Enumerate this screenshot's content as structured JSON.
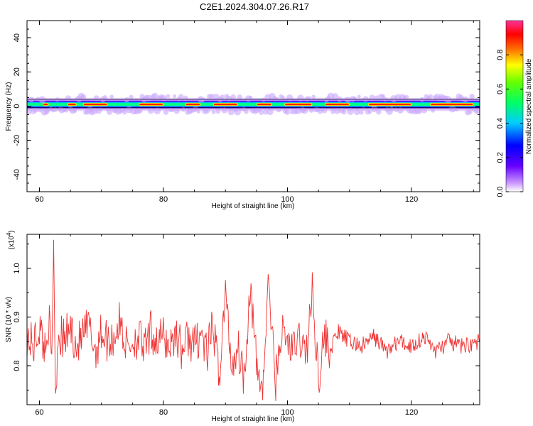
{
  "title": "C2E1.2024.304.07.26.R17",
  "chart_data": [
    {
      "type": "heatmap",
      "title": "C2E1.2024.304.07.26.R17",
      "xlabel": "Height of straight line (km)",
      "ylabel": "Frequency (Hz)",
      "xlim": [
        58,
        131
      ],
      "ylim": [
        -50,
        50
      ],
      "x_ticks": [
        "60",
        "80",
        "100",
        "120"
      ],
      "y_ticks": [
        "40",
        "20",
        "0",
        "-20",
        "-40"
      ],
      "y_tick_values": [
        40,
        20,
        0,
        -20,
        -40
      ],
      "x_tick_values": [
        60,
        80,
        100,
        120
      ],
      "band_center_hz": 1,
      "band_halfwidth_hz": 2,
      "strong_segments_km": [
        [
          60.5,
          61.5
        ],
        [
          64.5,
          66
        ],
        [
          67,
          71
        ],
        [
          76,
          80
        ],
        [
          83.5,
          86
        ],
        [
          88,
          92
        ],
        [
          95,
          97.5
        ],
        [
          99.5,
          104
        ],
        [
          106,
          110
        ],
        [
          113,
          120
        ],
        [
          123,
          130
        ]
      ],
      "colorbar": {
        "label": "Normalized spectral amplitude",
        "range": [
          0,
          1
        ],
        "ticks": [
          "0.0",
          "0.2",
          "0.4",
          "0.6",
          "0.8"
        ],
        "tick_values": [
          0.0,
          0.2,
          0.4,
          0.6,
          0.8
        ],
        "colors": [
          "#ffffff",
          "#9900ff",
          "#0000ff",
          "#00ffff",
          "#00ff00",
          "#ffff00",
          "#ff0000",
          "#ff00ff"
        ]
      }
    },
    {
      "type": "line",
      "xlabel": "Height of straight line (km)",
      "ylabel": "SNR (10 * v/v)",
      "scale_note": "(x10",
      "scale_exp": "4",
      "scale_close": ")",
      "xlim": [
        58,
        131
      ],
      "ylim": [
        0.72,
        1.07
      ],
      "x_ticks": [
        "60",
        "80",
        "100",
        "120"
      ],
      "x_tick_values": [
        60,
        80,
        100,
        120
      ],
      "y_ticks": [
        "0.8",
        "0.9",
        "1.0"
      ],
      "y_tick_values": [
        0.8,
        0.9,
        1.0
      ],
      "color": "#ee3333",
      "series": [
        {
          "x": [
            58,
            59,
            60,
            61,
            61.5,
            62,
            62.3,
            62.6,
            63,
            64,
            65,
            66,
            67,
            68,
            69,
            70,
            71,
            72,
            73,
            74,
            75,
            76,
            77,
            78,
            79,
            80,
            81,
            82,
            83,
            84,
            85,
            86,
            87,
            88,
            89,
            90,
            91,
            92,
            93,
            94,
            95,
            96,
            97,
            98,
            99,
            100,
            101,
            102,
            103,
            104,
            105,
            106,
            107,
            108,
            110,
            112,
            114,
            116,
            118,
            120,
            122,
            124,
            126,
            128,
            131
          ],
          "y": [
            0.86,
            0.84,
            0.88,
            0.83,
            0.9,
            0.8,
            1.07,
            0.73,
            0.87,
            0.85,
            0.88,
            0.84,
            0.86,
            0.88,
            0.83,
            0.87,
            0.85,
            0.86,
            0.89,
            0.84,
            0.85,
            0.86,
            0.83,
            0.87,
            0.85,
            0.86,
            0.84,
            0.87,
            0.83,
            0.86,
            0.84,
            0.87,
            0.82,
            0.88,
            0.78,
            0.95,
            0.8,
            0.84,
            0.78,
            0.97,
            0.8,
            0.75,
            0.98,
            0.76,
            0.87,
            0.85,
            0.83,
            0.86,
            0.82,
            0.95,
            0.78,
            0.86,
            0.83,
            0.87,
            0.85,
            0.84,
            0.86,
            0.83,
            0.85,
            0.84,
            0.86,
            0.83,
            0.85,
            0.84,
            0.85
          ]
        }
      ]
    }
  ]
}
